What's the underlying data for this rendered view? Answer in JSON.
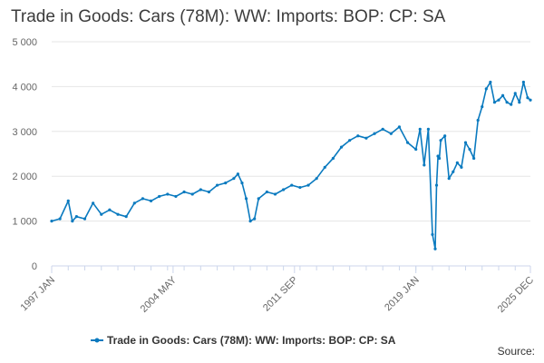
{
  "title": "Trade in Goods: Cars (78M): WW: Imports: BOP: CP: SA",
  "source_label": "Source:",
  "colors": {
    "series": "#0a7abf",
    "grid": "#e6e6e6",
    "axis": "#ccd6eb"
  },
  "chart_data": {
    "type": "line",
    "title": "Trade in Goods: Cars (78M): WW: Imports: BOP: CP: SA",
    "xlabel": "",
    "ylabel": "",
    "ylim": [
      0,
      5000
    ],
    "yticks": [
      0,
      1000,
      2000,
      3000,
      4000,
      5000
    ],
    "ytick_labels": [
      "0",
      "1 000",
      "2 000",
      "3 000",
      "4 000",
      "5 000"
    ],
    "x_range": [
      "1997-01",
      "2025-12"
    ],
    "xticks": [
      "1997-01",
      "2004-05",
      "2011-09",
      "2019-01",
      "2025-12"
    ],
    "xtick_labels": [
      "1997 JAN",
      "2004 MAY",
      "2011 SEP",
      "2019 JAN",
      "2025 DEC"
    ],
    "grid": true,
    "legend_position": "bottom-center",
    "series": [
      {
        "name": "Trade in Goods: Cars (78M): WW: Imports: BOP: CP: SA",
        "x": [
          "1997-01",
          "1997-07",
          "1998-01",
          "1998-04",
          "1998-07",
          "1999-01",
          "1999-07",
          "2000-01",
          "2000-07",
          "2001-01",
          "2001-07",
          "2002-01",
          "2002-07",
          "2003-01",
          "2003-07",
          "2004-01",
          "2004-07",
          "2005-01",
          "2005-07",
          "2006-01",
          "2006-07",
          "2007-01",
          "2007-07",
          "2008-01",
          "2008-04",
          "2008-07",
          "2008-10",
          "2009-01",
          "2009-04",
          "2009-07",
          "2010-01",
          "2010-07",
          "2011-01",
          "2011-07",
          "2012-01",
          "2012-07",
          "2013-01",
          "2013-07",
          "2014-01",
          "2014-07",
          "2015-01",
          "2015-07",
          "2016-01",
          "2016-07",
          "2017-01",
          "2017-07",
          "2018-01",
          "2018-07",
          "2019-01",
          "2019-04",
          "2019-07",
          "2019-10",
          "2020-01",
          "2020-03",
          "2020-04",
          "2020-05",
          "2020-06",
          "2020-07",
          "2020-10",
          "2021-01",
          "2021-04",
          "2021-07",
          "2021-10",
          "2022-01",
          "2022-04",
          "2022-07",
          "2022-10",
          "2023-01",
          "2023-04",
          "2023-07",
          "2023-10",
          "2024-01",
          "2024-04",
          "2024-07",
          "2024-10",
          "2025-01",
          "2025-04",
          "2025-07",
          "2025-10",
          "2025-12"
        ],
        "y": [
          1000,
          1050,
          1450,
          1000,
          1100,
          1050,
          1400,
          1150,
          1250,
          1150,
          1100,
          1400,
          1500,
          1450,
          1550,
          1600,
          1550,
          1650,
          1600,
          1700,
          1650,
          1800,
          1850,
          1950,
          2050,
          1850,
          1500,
          1000,
          1050,
          1500,
          1650,
          1600,
          1700,
          1800,
          1750,
          1800,
          1950,
          2200,
          2400,
          2650,
          2800,
          2900,
          2850,
          2950,
          3050,
          2950,
          3100,
          2750,
          2600,
          3050,
          2250,
          3050,
          700,
          380,
          1800,
          2450,
          2400,
          2800,
          2900,
          1950,
          2100,
          2300,
          2200,
          2750,
          2600,
          2400,
          3250,
          3550,
          3950,
          4100,
          3650,
          3700,
          3800,
          3650,
          3600,
          3850,
          3650,
          4100,
          3750,
          3700
        ]
      }
    ]
  }
}
